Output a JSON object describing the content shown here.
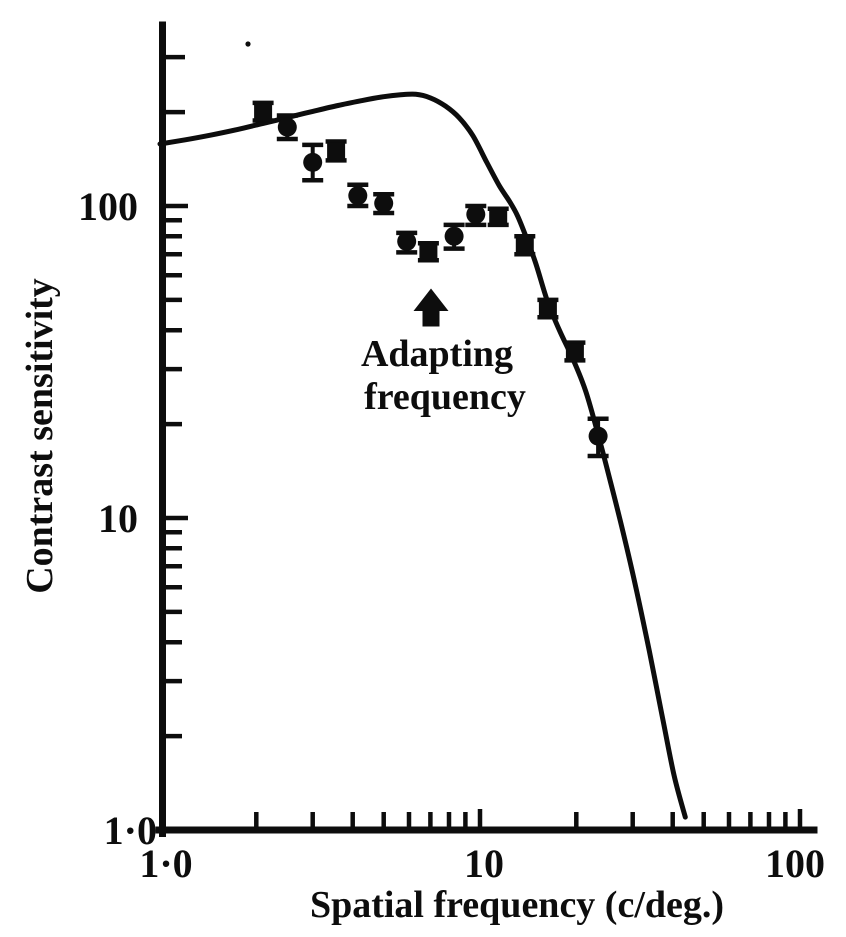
{
  "figure": {
    "background_color": "#ffffff",
    "ink_color": "#0d0d0d",
    "description": "Log-log plot of contrast sensitivity against spatial frequency: smooth unadapted contrast-sensitivity curve with measured adapted data points (error bars) dipping around the adapting frequency, marked by an upward arrow."
  },
  "chart_data": {
    "type": "line",
    "title": "",
    "xlabel": "Spatial frequency (c/deg.)",
    "ylabel": "Contrast sensitivity",
    "x_scale": "log",
    "y_scale": "log",
    "xlim": [
      1,
      100
    ],
    "ylim": [
      1,
      380
    ],
    "grid": false,
    "legend_position": "none",
    "x_major_ticks": [
      {
        "value": 1,
        "label": "1·0"
      },
      {
        "value": 10,
        "label": "10"
      },
      {
        "value": 100,
        "label": "100"
      }
    ],
    "x_minor_ticks": [
      2,
      3,
      4,
      5,
      6,
      7,
      8,
      9,
      20,
      30,
      40,
      50,
      60,
      70,
      80,
      90
    ],
    "y_major_ticks": [
      {
        "value": 1,
        "label": "1·0"
      },
      {
        "value": 10,
        "label": "10"
      },
      {
        "value": 100,
        "label": "100"
      }
    ],
    "y_minor_ticks": [
      2,
      3,
      4,
      5,
      6,
      7,
      8,
      9,
      20,
      30,
      40,
      50,
      60,
      70,
      80,
      90,
      200,
      300
    ],
    "series": [
      {
        "name": "unadapted contrast sensitivity curve",
        "type": "line",
        "points": [
          [
            1.0,
            158
          ],
          [
            1.2,
            163
          ],
          [
            1.45,
            169
          ],
          [
            1.75,
            176
          ],
          [
            2.1,
            184
          ],
          [
            2.5,
            192
          ],
          [
            3.0,
            201
          ],
          [
            3.6,
            210
          ],
          [
            4.3,
            218
          ],
          [
            5.0,
            224
          ],
          [
            5.6,
            227
          ],
          [
            6.3,
            228
          ],
          [
            7.0,
            222
          ],
          [
            7.8,
            209
          ],
          [
            8.6,
            192
          ],
          [
            9.5,
            168
          ],
          [
            10.5,
            138
          ],
          [
            11.5,
            116
          ],
          [
            12.4,
            103
          ],
          [
            13.1,
            93
          ],
          [
            13.9,
            80
          ],
          [
            14.9,
            66
          ],
          [
            16.2,
            50
          ],
          [
            17.7,
            40
          ],
          [
            19.6,
            32
          ],
          [
            21.4,
            25.5
          ],
          [
            23.4,
            18.5
          ],
          [
            25.6,
            13
          ],
          [
            28.0,
            9.0
          ],
          [
            30.8,
            5.9
          ],
          [
            33.8,
            3.75
          ],
          [
            37.0,
            2.35
          ],
          [
            40.4,
            1.5
          ],
          [
            43.8,
            1.1
          ]
        ]
      },
      {
        "name": "adapted sensitivity measurements",
        "type": "scatter_with_error_bars",
        "points": [
          {
            "freq": 2.1,
            "sensitivity": 200,
            "err_lo": 188,
            "err_hi": 214,
            "marker": "square"
          },
          {
            "freq": 2.5,
            "sensitivity": 179,
            "err_lo": 164,
            "err_hi": 195,
            "marker": "circle"
          },
          {
            "freq": 3.0,
            "sensitivity": 138,
            "err_lo": 121,
            "err_hi": 157,
            "marker": "circle"
          },
          {
            "freq": 3.55,
            "sensitivity": 150,
            "err_lo": 140,
            "err_hi": 161,
            "marker": "square"
          },
          {
            "freq": 4.15,
            "sensitivity": 108,
            "err_lo": 100,
            "err_hi": 117,
            "marker": "circle"
          },
          {
            "freq": 5.0,
            "sensitivity": 102,
            "err_lo": 95,
            "err_hi": 109,
            "marker": "circle"
          },
          {
            "freq": 5.9,
            "sensitivity": 77,
            "err_lo": 71,
            "err_hi": 82,
            "marker": "circle"
          },
          {
            "freq": 6.9,
            "sensitivity": 71,
            "err_lo": 67,
            "err_hi": 76,
            "marker": "square"
          },
          {
            "freq": 8.3,
            "sensitivity": 80,
            "err_lo": 73,
            "err_hi": 87,
            "marker": "circle"
          },
          {
            "freq": 9.7,
            "sensitivity": 94,
            "err_lo": 87,
            "err_hi": 100,
            "marker": "circle"
          },
          {
            "freq": 11.4,
            "sensitivity": 92,
            "err_lo": 87,
            "err_hi": 98,
            "marker": "square"
          },
          {
            "freq": 13.8,
            "sensitivity": 75,
            "err_lo": 70,
            "err_hi": 80,
            "marker": "square"
          },
          {
            "freq": 16.3,
            "sensitivity": 47,
            "err_lo": 44,
            "err_hi": 50,
            "marker": "square"
          },
          {
            "freq": 19.8,
            "sensitivity": 34,
            "err_lo": 32,
            "err_hi": 36.5,
            "marker": "square"
          },
          {
            "freq": 23.4,
            "sensitivity": 18.3,
            "err_lo": 15.8,
            "err_hi": 20.8,
            "marker": "circle"
          }
        ]
      }
    ],
    "annotation": {
      "label_line1": "Adapting",
      "label_line2": "frequency",
      "arrow_frequency": 7.0,
      "arrow_direction": "up"
    }
  }
}
